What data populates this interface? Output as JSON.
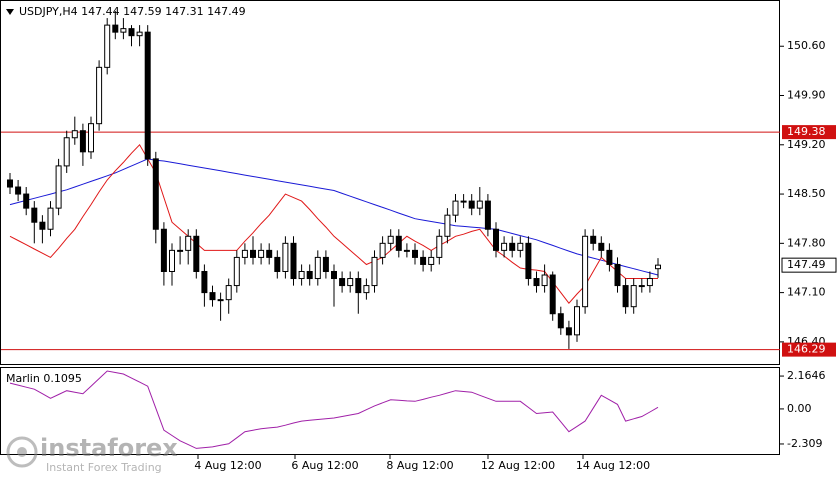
{
  "chart_data": [
    {
      "type": "candlestick",
      "title": "USDJPY,H4",
      "header_values": [
        147.44,
        147.59,
        147.31,
        147.49
      ],
      "open": [
        148.7,
        148.6,
        148.5,
        148.3,
        148.1,
        148.0,
        148.3,
        148.9,
        149.3,
        149.4,
        149.1,
        149.5,
        150.3,
        150.9,
        150.8,
        150.85,
        150.75,
        150.8,
        149.0,
        148.0,
        147.4,
        147.7,
        147.7,
        147.9,
        147.4,
        147.1,
        147.0,
        147.0,
        147.2,
        147.6,
        147.7,
        147.6,
        147.7,
        147.6,
        147.4,
        147.8,
        147.3,
        147.4,
        147.3,
        147.6,
        147.4,
        147.3,
        147.2,
        147.3,
        147.1,
        147.2,
        147.6,
        147.8,
        147.9,
        147.7,
        147.7,
        147.6,
        147.5,
        147.6,
        147.9,
        148.2,
        148.4,
        148.4,
        148.3,
        148.4,
        148.0,
        147.7,
        147.8,
        147.7,
        147.8,
        147.3,
        147.2,
        147.35,
        146.8,
        146.6,
        146.5,
        146.9,
        147.9,
        147.8,
        147.7,
        147.5,
        147.2,
        146.9,
        147.2,
        147.2,
        147.44
      ],
      "high": [
        148.8,
        148.7,
        148.6,
        148.4,
        148.2,
        148.4,
        149.0,
        149.4,
        149.6,
        149.5,
        149.6,
        150.4,
        151.0,
        151.1,
        151.0,
        150.9,
        150.9,
        150.9,
        149.1,
        148.1,
        147.8,
        147.9,
        148.0,
        148.0,
        147.5,
        147.2,
        147.1,
        147.3,
        147.7,
        147.8,
        147.9,
        147.8,
        147.8,
        147.7,
        147.9,
        147.9,
        147.5,
        147.5,
        147.7,
        147.7,
        147.5,
        147.4,
        147.4,
        147.4,
        147.3,
        147.7,
        147.9,
        148.0,
        148.0,
        147.8,
        147.8,
        147.7,
        147.7,
        148.0,
        148.3,
        148.5,
        148.5,
        148.5,
        148.6,
        148.5,
        148.1,
        147.9,
        147.9,
        147.9,
        147.9,
        147.4,
        147.5,
        147.4,
        146.9,
        146.7,
        147.0,
        148.0,
        148.0,
        147.9,
        147.8,
        147.6,
        147.3,
        147.3,
        147.3,
        147.4,
        147.59
      ],
      "low": [
        148.5,
        148.4,
        148.2,
        147.8,
        147.8,
        147.9,
        148.2,
        148.8,
        149.2,
        148.9,
        149.0,
        149.4,
        150.2,
        150.7,
        150.7,
        150.6,
        150.6,
        148.9,
        147.8,
        147.2,
        147.2,
        147.5,
        147.5,
        147.3,
        146.9,
        146.9,
        146.7,
        146.8,
        147.1,
        147.5,
        147.5,
        147.5,
        147.5,
        147.3,
        147.3,
        147.2,
        147.2,
        147.2,
        147.2,
        147.3,
        146.9,
        147.1,
        147.1,
        146.8,
        147.0,
        147.1,
        147.5,
        147.7,
        147.6,
        147.6,
        147.5,
        147.4,
        147.4,
        147.5,
        147.8,
        148.1,
        148.3,
        148.2,
        148.2,
        147.9,
        147.6,
        147.6,
        147.6,
        147.6,
        147.2,
        147.1,
        147.1,
        146.7,
        146.5,
        146.3,
        146.4,
        146.8,
        147.7,
        147.6,
        147.4,
        147.1,
        146.8,
        146.8,
        147.1,
        147.1,
        147.31
      ],
      "close": [
        148.6,
        148.5,
        148.3,
        148.1,
        148.0,
        148.3,
        148.9,
        149.3,
        149.4,
        149.1,
        149.5,
        150.3,
        150.9,
        150.8,
        150.85,
        150.75,
        150.8,
        149.0,
        148.0,
        147.4,
        147.7,
        147.7,
        147.9,
        147.4,
        147.1,
        147.0,
        147.0,
        147.2,
        147.6,
        147.7,
        147.6,
        147.7,
        147.6,
        147.4,
        147.8,
        147.3,
        147.4,
        147.3,
        147.6,
        147.4,
        147.3,
        147.2,
        147.3,
        147.1,
        147.2,
        147.6,
        147.8,
        147.9,
        147.7,
        147.7,
        147.6,
        147.5,
        147.6,
        147.9,
        148.2,
        148.4,
        148.4,
        148.3,
        148.4,
        148.0,
        147.7,
        147.8,
        147.7,
        147.8,
        147.3,
        147.2,
        147.35,
        146.8,
        146.6,
        146.5,
        146.9,
        147.9,
        147.8,
        147.7,
        147.5,
        147.2,
        146.9,
        147.2,
        147.2,
        147.3,
        147.49
      ],
      "series": [
        {
          "color": "#1a1ad6",
          "values": [
            148.35,
            148.38,
            148.41,
            148.44,
            148.47,
            148.5,
            148.53,
            148.56,
            148.6,
            148.64,
            148.68,
            148.72,
            148.76,
            148.8,
            148.85,
            148.9,
            148.95,
            149.0,
            148.98,
            148.97,
            148.95,
            148.93,
            148.91,
            148.89,
            148.87,
            148.85,
            148.83,
            148.81,
            148.79,
            148.77,
            148.75,
            148.73,
            148.71,
            148.69,
            148.67,
            148.65,
            148.63,
            148.61,
            148.59,
            148.57,
            148.55,
            148.51,
            148.47,
            148.43,
            148.39,
            148.35,
            148.31,
            148.27,
            148.23,
            148.19,
            148.15,
            148.13,
            148.11,
            148.09,
            148.07,
            148.05,
            148.04,
            148.03,
            148.02,
            148.01,
            148.0,
            147.97,
            147.94,
            147.91,
            147.88,
            147.85,
            147.81,
            147.77,
            147.73,
            147.69,
            147.65,
            147.62,
            147.59,
            147.56,
            147.53,
            147.5,
            147.47,
            147.44,
            147.41,
            147.38,
            147.35
          ]
        },
        {
          "color": "#e01818",
          "values": [
            147.9,
            147.84,
            147.78,
            147.72,
            147.66,
            147.6,
            147.73,
            147.87,
            148.0,
            148.18,
            148.35,
            148.53,
            148.7,
            148.83,
            148.95,
            149.08,
            149.2,
            149.0,
            148.8,
            148.45,
            148.1,
            148.0,
            147.9,
            147.8,
            147.7,
            147.7,
            147.7,
            147.7,
            147.7,
            147.83,
            147.95,
            148.08,
            148.2,
            148.35,
            148.5,
            148.45,
            148.4,
            148.28,
            148.15,
            148.03,
            147.9,
            147.8,
            147.7,
            147.6,
            147.5,
            147.55,
            147.6,
            147.7,
            147.8,
            147.9,
            147.83,
            147.77,
            147.7,
            147.77,
            147.83,
            147.9,
            147.93,
            147.97,
            148.0,
            147.85,
            147.7,
            147.62,
            147.53,
            147.45,
            147.43,
            147.42,
            147.4,
            147.25,
            147.1,
            146.95,
            147.08,
            147.2,
            147.4,
            147.6,
            147.5,
            147.4,
            147.3,
            147.3,
            147.3,
            147.3,
            147.3
          ]
        }
      ],
      "hlines": [
        149.38,
        146.29
      ],
      "hline_color": "#d01010",
      "last_price": 147.49,
      "ylim": [
        146.1,
        151.2
      ],
      "yticks": [
        {
          "value": 150.6,
          "label": "150.60"
        },
        {
          "value": 149.9,
          "label": "149.90"
        },
        {
          "value": 149.2,
          "label": "149.20"
        },
        {
          "value": 148.5,
          "label": "148.50"
        },
        {
          "value": 147.8,
          "label": "147.80"
        },
        {
          "value": 147.1,
          "label": "147.10"
        },
        {
          "value": 146.4,
          "label": "146.40"
        }
      ],
      "x_labels": [
        "4 Aug 12:00",
        "6 Aug 12:00",
        "8 Aug 12:00",
        "12 Aug 12:00",
        "14 Aug 12:00"
      ]
    },
    {
      "type": "line",
      "title": "Marlin",
      "current": 0.1095,
      "series": [
        {
          "color": "#a020a8",
          "values": [
            1.7,
            1.57,
            1.43,
            1.3,
            1.0,
            0.7,
            0.95,
            1.2,
            1.1,
            1.0,
            1.5,
            2.0,
            2.5,
            2.4,
            2.3,
            2.03,
            1.77,
            1.5,
            0.05,
            -1.4,
            -1.75,
            -2.1,
            -2.35,
            -2.6,
            -2.55,
            -2.5,
            -2.4,
            -2.3,
            -1.9,
            -1.5,
            -1.4,
            -1.3,
            -1.25,
            -1.2,
            -1.07,
            -0.93,
            -0.8,
            -0.75,
            -0.7,
            -0.65,
            -0.6,
            -0.5,
            -0.4,
            -0.3,
            -0.05,
            0.2,
            0.4,
            0.6,
            0.57,
            0.53,
            0.5,
            0.63,
            0.77,
            0.9,
            1.05,
            1.2,
            1.15,
            1.1,
            0.9,
            0.7,
            0.5,
            0.5,
            0.5,
            0.5,
            0.1,
            -0.3,
            -0.25,
            -0.2,
            -0.85,
            -1.5,
            -1.15,
            -0.8,
            0.05,
            0.9,
            0.6,
            0.3,
            -0.8,
            -0.65,
            -0.5,
            -0.2,
            0.1095
          ]
        }
      ],
      "ylim": [
        -2.97,
        2.63
      ],
      "yticks": [
        2.1646,
        {
          "value": 0,
          "label": "0.00"
        },
        -2.309
      ]
    }
  ],
  "watermark": {
    "brand": "instaforex",
    "tagline": "Instant Forex Trading"
  }
}
